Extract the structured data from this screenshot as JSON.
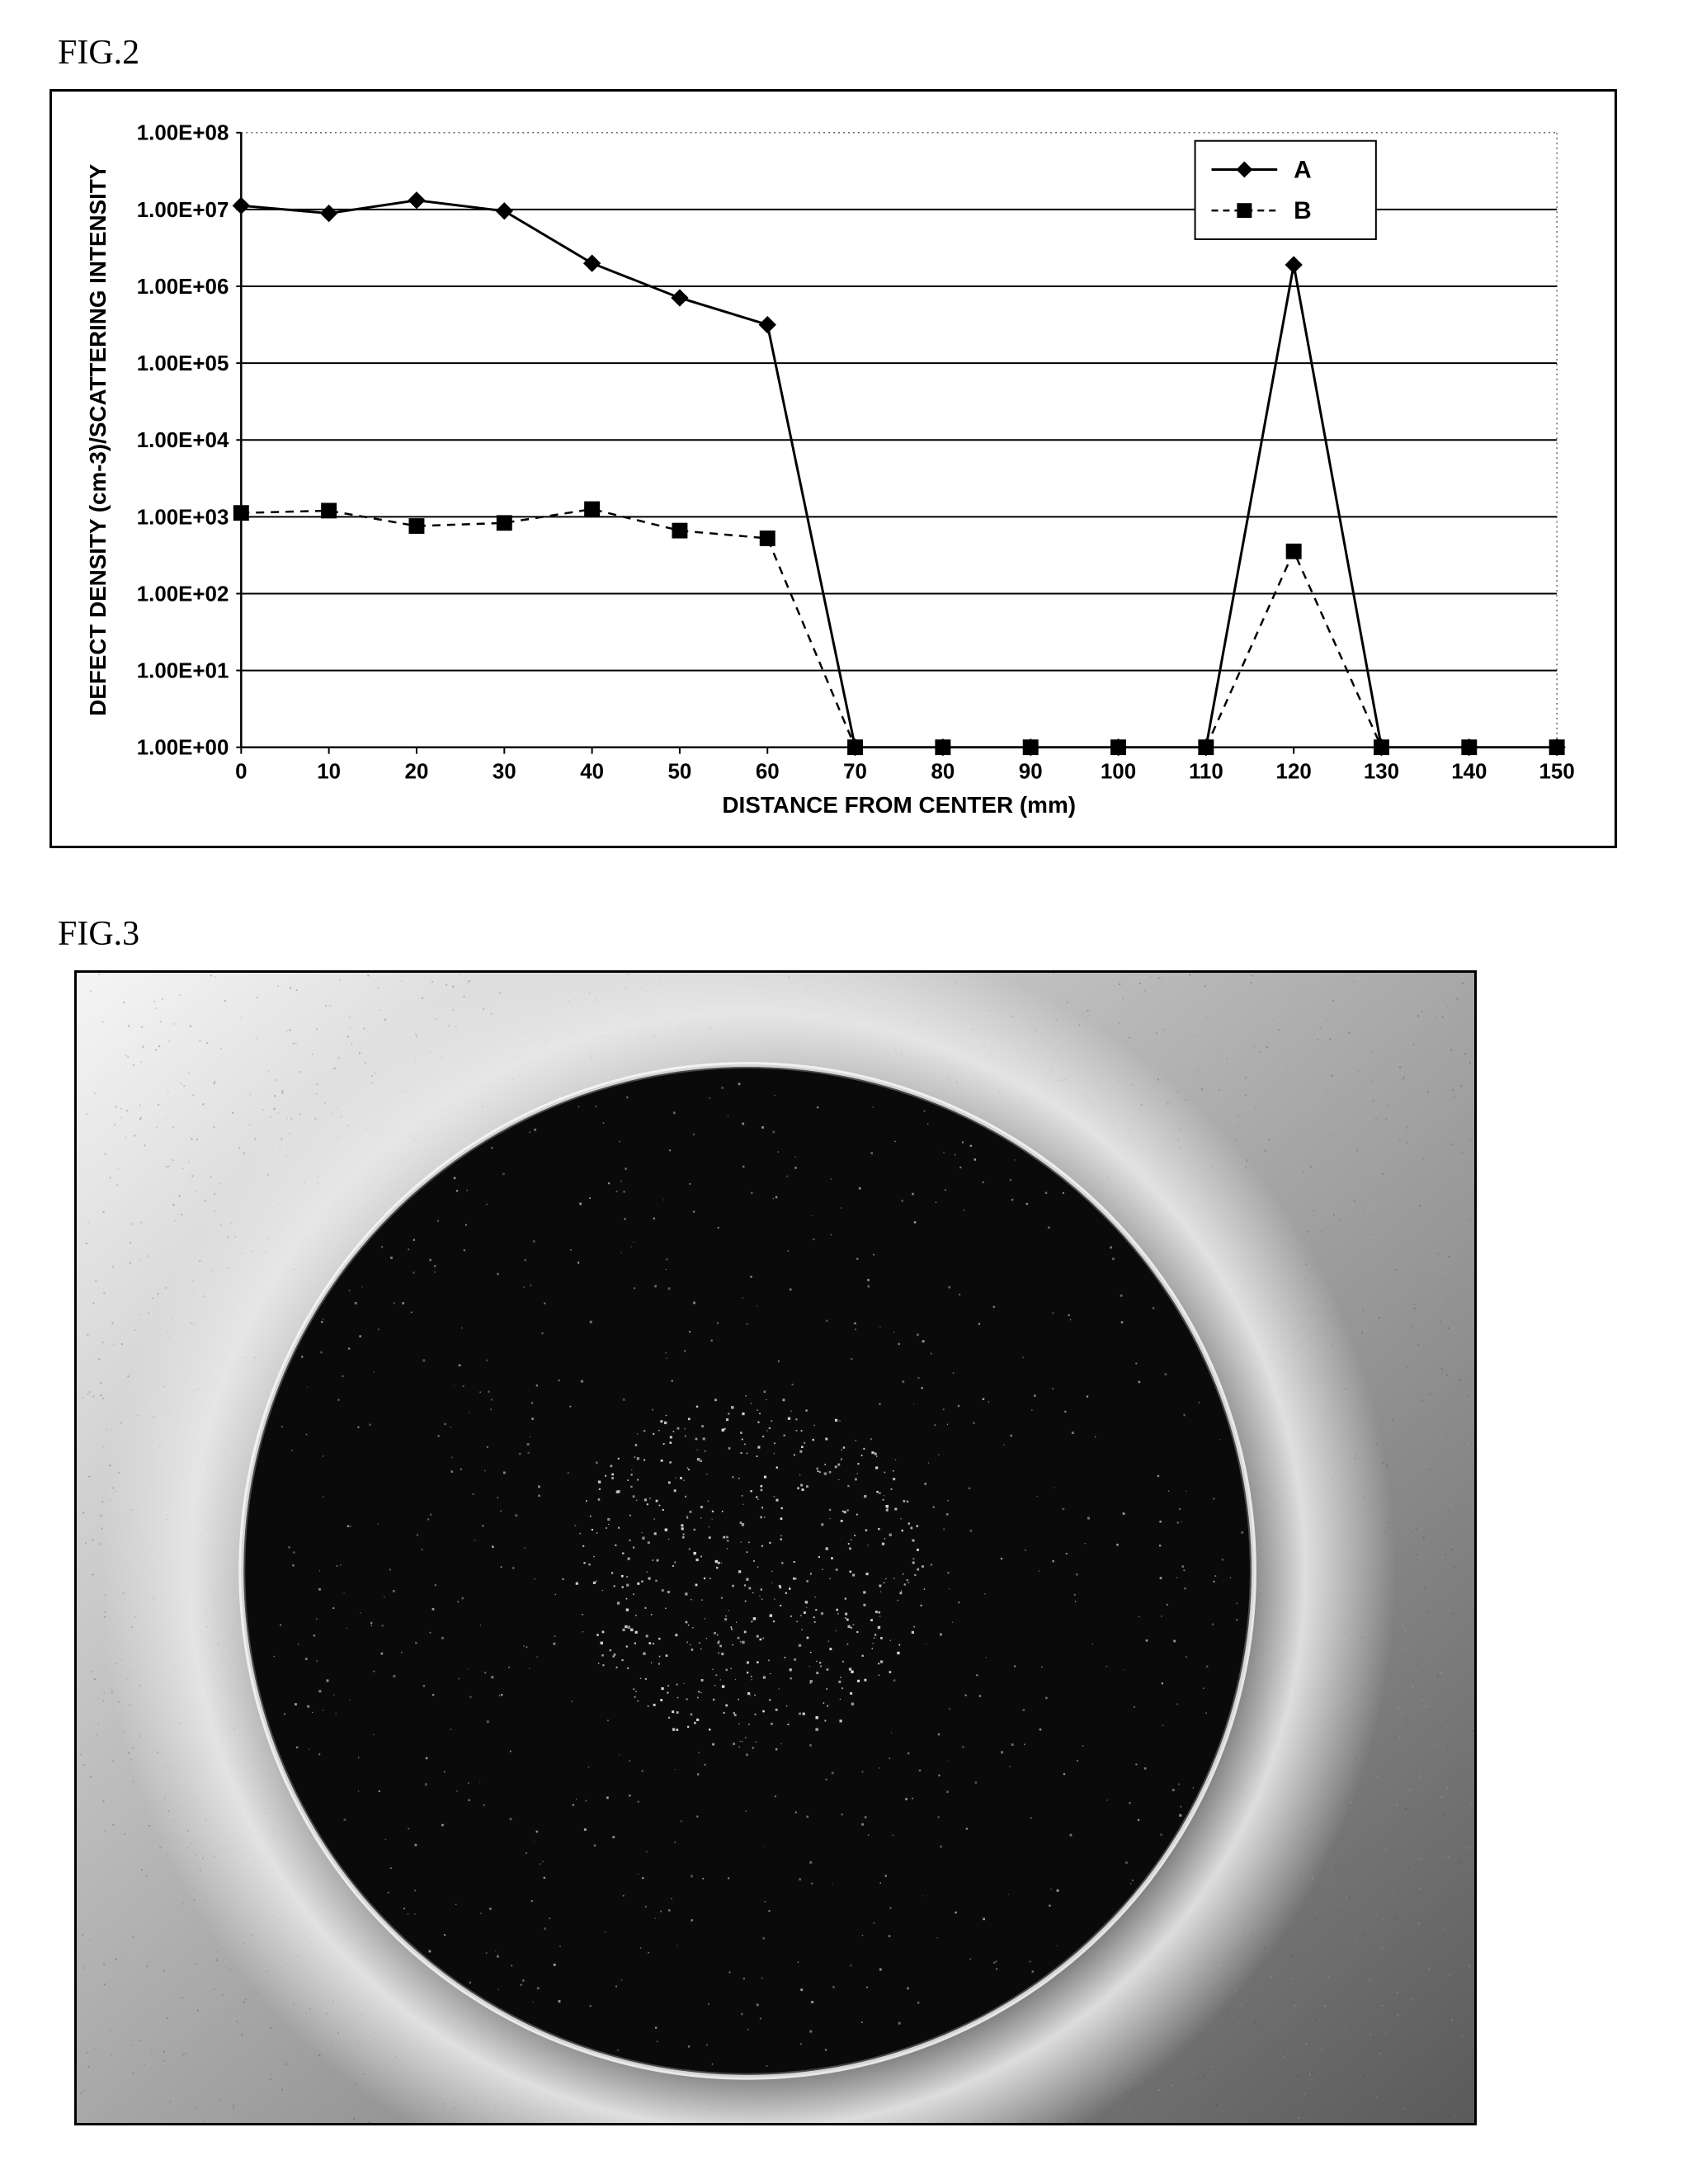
{
  "fig2": {
    "label": "FIG.2",
    "chart": {
      "type": "line",
      "xlabel": "DISTANCE FROM CENTER (mm)",
      "ylabel": "DEFECT DENSITY (cm-3)/SCATTERING INTENSITY",
      "xlim": [
        0,
        150
      ],
      "xticks": [
        0,
        10,
        20,
        30,
        40,
        50,
        60,
        70,
        80,
        90,
        100,
        110,
        120,
        130,
        140,
        150
      ],
      "ylim_log": [
        0,
        8
      ],
      "yticks": [
        "1.00E+00",
        "1.00E+01",
        "1.00E+02",
        "1.00E+03",
        "1.00E+04",
        "1.00E+05",
        "1.00E+06",
        "1.00E+07",
        "1.00E+08"
      ],
      "label_fontsize": 28,
      "tick_fontsize": 26,
      "background_color": "#ffffff",
      "grid_color": "#000000",
      "border_color": "#000000",
      "dotted_boundary_color": "#666666",
      "legend": {
        "position": "top-right",
        "items": [
          "A",
          "B"
        ],
        "fontsize": 30,
        "box_stroke": "#000000",
        "box_fill": "#ffffff"
      },
      "series": [
        {
          "name": "A",
          "color": "#000000",
          "line_style": "solid",
          "line_width": 3,
          "marker": "diamond",
          "marker_size": 10,
          "x": [
            0,
            10,
            20,
            30,
            40,
            50,
            60,
            70,
            80,
            90,
            100,
            110,
            120,
            130,
            140,
            150
          ],
          "y_log": [
            7.05,
            6.95,
            7.12,
            6.98,
            6.3,
            5.85,
            5.5,
            0,
            0,
            0,
            0,
            0,
            6.28,
            0,
            0,
            0
          ]
        },
        {
          "name": "B",
          "color": "#000000",
          "line_style": "dashed",
          "line_width": 2.5,
          "marker": "square",
          "marker_size": 9,
          "x": [
            0,
            10,
            20,
            30,
            40,
            50,
            60,
            70,
            80,
            90,
            100,
            110,
            120,
            130,
            140,
            150
          ],
          "y_log": [
            3.05,
            3.08,
            2.88,
            2.92,
            3.1,
            2.82,
            2.72,
            0,
            0,
            0,
            0,
            0,
            2.55,
            0,
            0,
            0
          ]
        }
      ]
    }
  },
  "fig3": {
    "label": "FIG.3",
    "image": {
      "type": "wafer-micrograph",
      "background_gradient": [
        "#f5f5f5",
        "#5a5a5a"
      ],
      "wafer_fill": "#0a0a0a",
      "wafer_ring_highlight": "#f8f8f8",
      "halo_color": "#e8e8e8",
      "speckle_color": "#dddddd",
      "center_speckle_density": 0.004,
      "outer_speckle_density": 0.0006,
      "noise_seed": 42
    }
  }
}
